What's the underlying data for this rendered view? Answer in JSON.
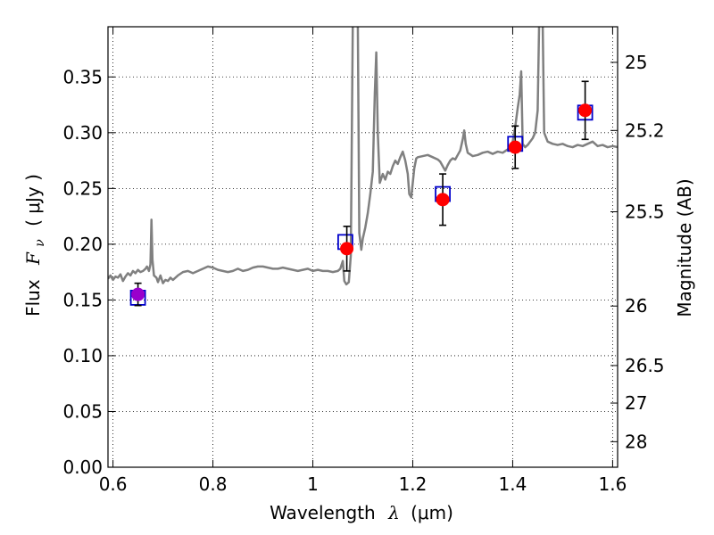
{
  "chart_data": {
    "type": "scatter",
    "xlabel": "Wavelength",
    "xlabel_symbol": "λ",
    "xlabel_unit": "(μm)",
    "ylabel": "Flux",
    "ylabel_symbol": "F",
    "ylabel_subscript": "ν",
    "ylabel_unit": "( μJy )",
    "y2label": "Magnitude (AB)",
    "xlim": [
      0.59,
      1.61
    ],
    "ylim": [
      0.0,
      0.395
    ],
    "grid": true,
    "x_ticks": [
      0.6,
      0.8,
      1.0,
      1.2,
      1.4,
      1.6
    ],
    "x_tick_labels": [
      "0.6",
      "0.8",
      "1",
      "1.2",
      "1.4",
      "1.6"
    ],
    "y_ticks": [
      0.0,
      0.05,
      0.1,
      0.15,
      0.2,
      0.25,
      0.3,
      0.35
    ],
    "y_tick_labels": [
      "0.00",
      "0.05",
      "0.10",
      "0.15",
      "0.20",
      "0.25",
      "0.30",
      "0.35"
    ],
    "y2_ticks": [
      25,
      25.2,
      25.5,
      26,
      26.5,
      27,
      28
    ],
    "y2_tick_labels": [
      "25",
      "25.2",
      "25.5",
      "26",
      "26.5",
      "27",
      "28"
    ],
    "series": [
      {
        "kind": "spectrum_line",
        "color": "#808080",
        "points": [
          [
            0.59,
            0.169
          ],
          [
            0.595,
            0.172
          ],
          [
            0.6,
            0.168
          ],
          [
            0.605,
            0.171
          ],
          [
            0.61,
            0.17
          ],
          [
            0.615,
            0.173
          ],
          [
            0.62,
            0.167
          ],
          [
            0.625,
            0.171
          ],
          [
            0.63,
            0.174
          ],
          [
            0.635,
            0.172
          ],
          [
            0.64,
            0.176
          ],
          [
            0.645,
            0.174
          ],
          [
            0.65,
            0.177
          ],
          [
            0.655,
            0.175
          ],
          [
            0.66,
            0.176
          ],
          [
            0.665,
            0.178
          ],
          [
            0.668,
            0.18
          ],
          [
            0.672,
            0.176
          ],
          [
            0.675,
            0.182
          ],
          [
            0.677,
            0.222
          ],
          [
            0.679,
            0.186
          ],
          [
            0.682,
            0.172
          ],
          [
            0.687,
            0.17
          ],
          [
            0.69,
            0.166
          ],
          [
            0.695,
            0.172
          ],
          [
            0.7,
            0.165
          ],
          [
            0.705,
            0.168
          ],
          [
            0.71,
            0.167
          ],
          [
            0.715,
            0.17
          ],
          [
            0.72,
            0.168
          ],
          [
            0.73,
            0.172
          ],
          [
            0.74,
            0.175
          ],
          [
            0.75,
            0.176
          ],
          [
            0.76,
            0.174
          ],
          [
            0.77,
            0.176
          ],
          [
            0.78,
            0.178
          ],
          [
            0.79,
            0.18
          ],
          [
            0.8,
            0.179
          ],
          [
            0.81,
            0.177
          ],
          [
            0.82,
            0.176
          ],
          [
            0.83,
            0.175
          ],
          [
            0.84,
            0.176
          ],
          [
            0.85,
            0.178
          ],
          [
            0.86,
            0.176
          ],
          [
            0.87,
            0.177
          ],
          [
            0.88,
            0.179
          ],
          [
            0.89,
            0.18
          ],
          [
            0.9,
            0.18
          ],
          [
            0.91,
            0.179
          ],
          [
            0.92,
            0.178
          ],
          [
            0.93,
            0.178
          ],
          [
            0.94,
            0.179
          ],
          [
            0.95,
            0.178
          ],
          [
            0.96,
            0.177
          ],
          [
            0.97,
            0.176
          ],
          [
            0.98,
            0.177
          ],
          [
            0.99,
            0.178
          ],
          [
            1.0,
            0.176
          ],
          [
            1.01,
            0.177
          ],
          [
            1.02,
            0.176
          ],
          [
            1.03,
            0.176
          ],
          [
            1.04,
            0.175
          ],
          [
            1.05,
            0.176
          ],
          [
            1.055,
            0.178
          ],
          [
            1.06,
            0.185
          ],
          [
            1.063,
            0.167
          ],
          [
            1.067,
            0.164
          ],
          [
            1.072,
            0.166
          ],
          [
            1.076,
            0.19
          ],
          [
            1.08,
            0.4
          ],
          [
            1.09,
            0.4
          ],
          [
            1.093,
            0.21
          ],
          [
            1.097,
            0.195
          ],
          [
            1.1,
            0.205
          ],
          [
            1.105,
            0.215
          ],
          [
            1.11,
            0.228
          ],
          [
            1.115,
            0.245
          ],
          [
            1.12,
            0.265
          ],
          [
            1.124,
            0.335
          ],
          [
            1.127,
            0.372
          ],
          [
            1.13,
            0.3
          ],
          [
            1.134,
            0.255
          ],
          [
            1.14,
            0.263
          ],
          [
            1.145,
            0.258
          ],
          [
            1.15,
            0.265
          ],
          [
            1.155,
            0.263
          ],
          [
            1.16,
            0.27
          ],
          [
            1.165,
            0.275
          ],
          [
            1.17,
            0.272
          ],
          [
            1.175,
            0.278
          ],
          [
            1.18,
            0.283
          ],
          [
            1.185,
            0.275
          ],
          [
            1.19,
            0.263
          ],
          [
            1.193,
            0.245
          ],
          [
            1.197,
            0.242
          ],
          [
            1.2,
            0.255
          ],
          [
            1.203,
            0.268
          ],
          [
            1.207,
            0.277
          ],
          [
            1.21,
            0.278
          ],
          [
            1.22,
            0.279
          ],
          [
            1.23,
            0.28
          ],
          [
            1.24,
            0.278
          ],
          [
            1.25,
            0.276
          ],
          [
            1.255,
            0.274
          ],
          [
            1.26,
            0.27
          ],
          [
            1.265,
            0.266
          ],
          [
            1.27,
            0.271
          ],
          [
            1.275,
            0.275
          ],
          [
            1.28,
            0.277
          ],
          [
            1.285,
            0.276
          ],
          [
            1.29,
            0.28
          ],
          [
            1.295,
            0.284
          ],
          [
            1.3,
            0.294
          ],
          [
            1.303,
            0.302
          ],
          [
            1.306,
            0.29
          ],
          [
            1.31,
            0.282
          ],
          [
            1.32,
            0.279
          ],
          [
            1.33,
            0.28
          ],
          [
            1.34,
            0.282
          ],
          [
            1.35,
            0.283
          ],
          [
            1.36,
            0.281
          ],
          [
            1.37,
            0.283
          ],
          [
            1.38,
            0.282
          ],
          [
            1.39,
            0.285
          ],
          [
            1.395,
            0.287
          ],
          [
            1.4,
            0.292
          ],
          [
            1.405,
            0.305
          ],
          [
            1.41,
            0.322
          ],
          [
            1.414,
            0.334
          ],
          [
            1.417,
            0.355
          ],
          [
            1.42,
            0.29
          ],
          [
            1.425,
            0.287
          ],
          [
            1.43,
            0.289
          ],
          [
            1.44,
            0.295
          ],
          [
            1.445,
            0.3
          ],
          [
            1.45,
            0.32
          ],
          [
            1.453,
            0.4
          ],
          [
            1.46,
            0.4
          ],
          [
            1.463,
            0.3
          ],
          [
            1.47,
            0.292
          ],
          [
            1.48,
            0.29
          ],
          [
            1.49,
            0.289
          ],
          [
            1.5,
            0.29
          ],
          [
            1.51,
            0.288
          ],
          [
            1.52,
            0.287
          ],
          [
            1.53,
            0.289
          ],
          [
            1.54,
            0.288
          ],
          [
            1.55,
            0.29
          ],
          [
            1.56,
            0.292
          ],
          [
            1.57,
            0.288
          ],
          [
            1.58,
            0.289
          ],
          [
            1.59,
            0.287
          ],
          [
            1.6,
            0.288
          ],
          [
            1.61,
            0.287
          ]
        ]
      },
      {
        "kind": "model_photometry",
        "marker": "open-square",
        "color": "#0000cc",
        "x": [
          0.65,
          1.065,
          1.26,
          1.405,
          1.545
        ],
        "y": [
          0.152,
          0.202,
          0.245,
          0.29,
          0.318
        ]
      },
      {
        "kind": "observed_photometry",
        "marker": "filled-circle",
        "x": [
          0.65,
          1.068,
          1.26,
          1.405,
          1.545
        ],
        "y": [
          0.155,
          0.196,
          0.24,
          0.287,
          0.32
        ],
        "yerr": [
          0.01,
          0.02,
          0.023,
          0.019,
          0.026
        ],
        "colors": [
          "#9900cc",
          "#ff0000",
          "#ff0000",
          "#ff0000",
          "#ff0000"
        ]
      }
    ]
  }
}
